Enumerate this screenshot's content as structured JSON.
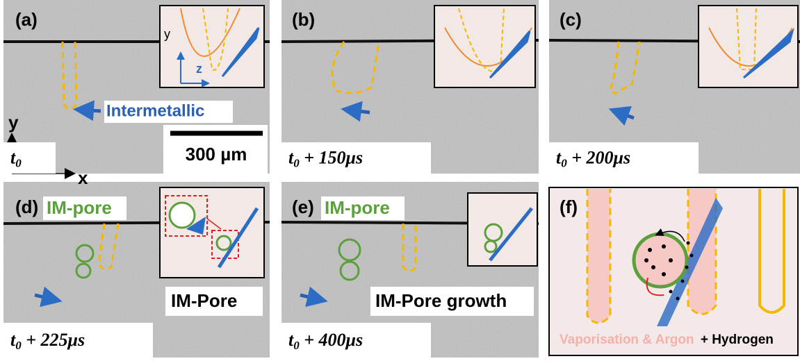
{
  "panels": [
    {
      "label": "(a)",
      "time": {
        "base": "t",
        "sub": "0"
      }
    },
    {
      "label": "(b)",
      "time": {
        "base": "t",
        "sub": "0",
        "rest": " + 150μs"
      }
    },
    {
      "label": "(c)",
      "time": {
        "base": "t",
        "sub": "0",
        "rest": " + 200μs"
      }
    },
    {
      "label": "(d)",
      "time": {
        "base": "t",
        "sub": "0",
        "rest": " + 225μs"
      }
    },
    {
      "label": "(e)",
      "time": {
        "base": "t",
        "sub": "0",
        "rest": " + 400μs"
      }
    },
    {
      "label": "(f)"
    }
  ],
  "annotations": {
    "intermetallic": "Intermetallic",
    "scale_bar": "300 µm",
    "axes": {
      "x": "x",
      "y": "y"
    },
    "inset_axes": {
      "y": "y",
      "z": "z"
    },
    "im_pore_d": "IM-pore",
    "im_pore_label_d": "IM-Pore",
    "im_pore_e": "IM-pore",
    "im_pore_growth": "IM-Pore growth"
  },
  "panel_f": {
    "caption_pink": "Vaporisation & Argon",
    "caption_black": "+ Hydrogen"
  }
}
